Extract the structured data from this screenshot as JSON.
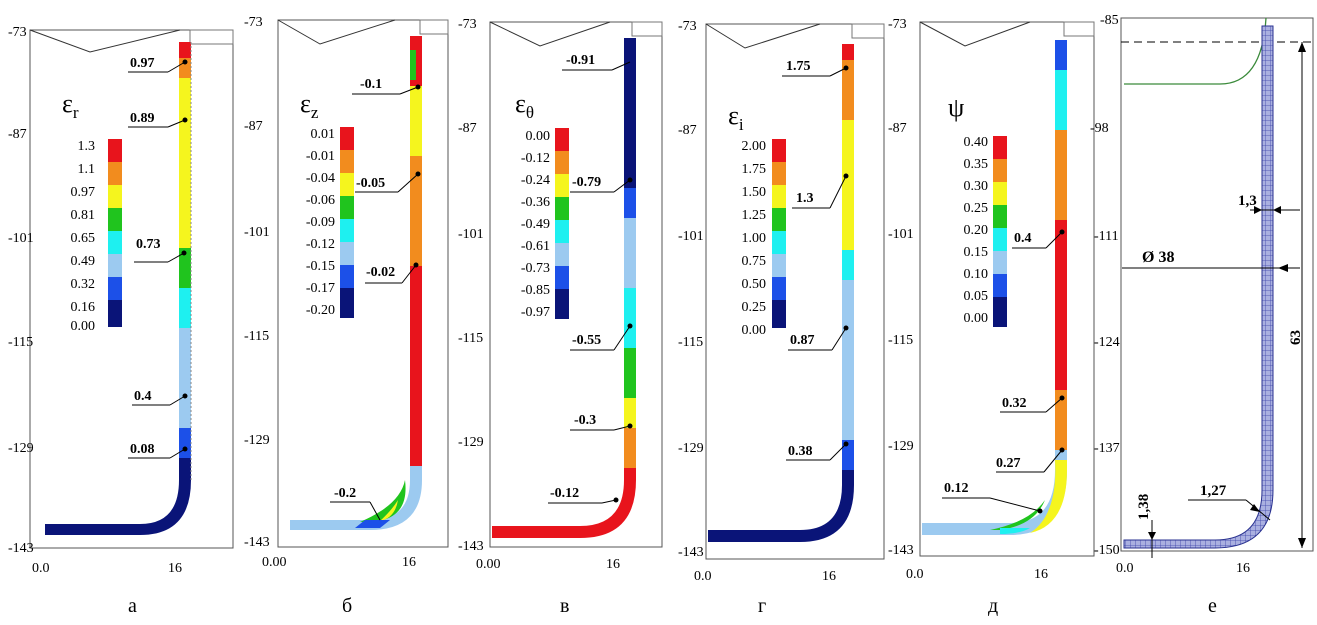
{
  "panels": [
    {
      "id": "a",
      "letter": "а",
      "symbol": "ε",
      "sub": "r",
      "y_ticks": [
        "-73",
        "-87",
        "-101",
        "-115",
        "-129",
        "-143"
      ],
      "x_ticks": [
        "0.0",
        "16"
      ],
      "legend": [
        "1.3",
        "1.1",
        "0.97",
        "0.81",
        "0.65",
        "0.49",
        "0.32",
        "0.16",
        "0.00"
      ],
      "annotations": [
        "0.97",
        "0.89",
        "0.73",
        "0.4",
        "0.08"
      ]
    },
    {
      "id": "b",
      "letter": "б",
      "symbol": "ε",
      "sub": "z",
      "y_ticks": [
        "-73",
        "-87",
        "-101",
        "-115",
        "-129",
        "-143"
      ],
      "x_ticks": [
        "0.00",
        "16"
      ],
      "legend": [
        "0.01",
        "-0.01",
        "-0.04",
        "-0.06",
        "-0.09",
        "-0.12",
        "-0.15",
        "-0.17",
        "-0.20"
      ],
      "annotations": [
        "-0.1",
        "-0.05",
        "-0.02",
        "-0.2"
      ]
    },
    {
      "id": "v",
      "letter": "в",
      "symbol": "ε",
      "sub": "θ",
      "y_ticks": [
        "-73",
        "-87",
        "-101",
        "-115",
        "-129",
        "-143"
      ],
      "x_ticks": [
        "0.00",
        "16"
      ],
      "legend": [
        "0.00",
        "-0.12",
        "-0.24",
        "-0.36",
        "-0.49",
        "-0.61",
        "-0.73",
        "-0.85",
        "-0.97"
      ],
      "annotations": [
        "-0.91",
        "-0.79",
        "-0.55",
        "-0.3",
        "-0.12"
      ]
    },
    {
      "id": "g",
      "letter": "г",
      "symbol": "ε",
      "sub": "i",
      "y_ticks": [
        "-73",
        "-87",
        "-101",
        "-115",
        "-129",
        "-143"
      ],
      "x_ticks": [
        "0.0",
        "16"
      ],
      "legend": [
        "2.00",
        "1.75",
        "1.50",
        "1.25",
        "1.00",
        "0.75",
        "0.50",
        "0.25",
        "0.00"
      ],
      "annotations": [
        "1.75",
        "1.3",
        "0.87",
        "0.38"
      ]
    },
    {
      "id": "d",
      "letter": "д",
      "symbol": "ψ",
      "sub": "",
      "y_ticks": [
        "-73",
        "-87",
        "-101",
        "-115",
        "-129",
        "-143"
      ],
      "x_ticks": [
        "0.0",
        "16"
      ],
      "legend": [
        "0.40",
        "0.35",
        "0.30",
        "0.25",
        "0.20",
        "0.15",
        "0.10",
        "0.05",
        "0.00"
      ],
      "annotations": [
        "0.4",
        "0.32",
        "0.27",
        "0.12"
      ]
    },
    {
      "id": "e",
      "letter": "е",
      "y_ticks": [
        "-85",
        "-98",
        "-111",
        "-124",
        "-137",
        "-150"
      ],
      "x_ticks": [
        "0.0",
        "16"
      ],
      "dims": [
        "1,3",
        "Ø 38",
        "63",
        "1,38",
        "1,27"
      ]
    }
  ],
  "legend_colors": [
    "#e8141c",
    "#f28c1e",
    "#f5f51e",
    "#20c41e",
    "#1ef0f0",
    "#9ccaf0",
    "#1c50e8",
    "#0a1478"
  ]
}
